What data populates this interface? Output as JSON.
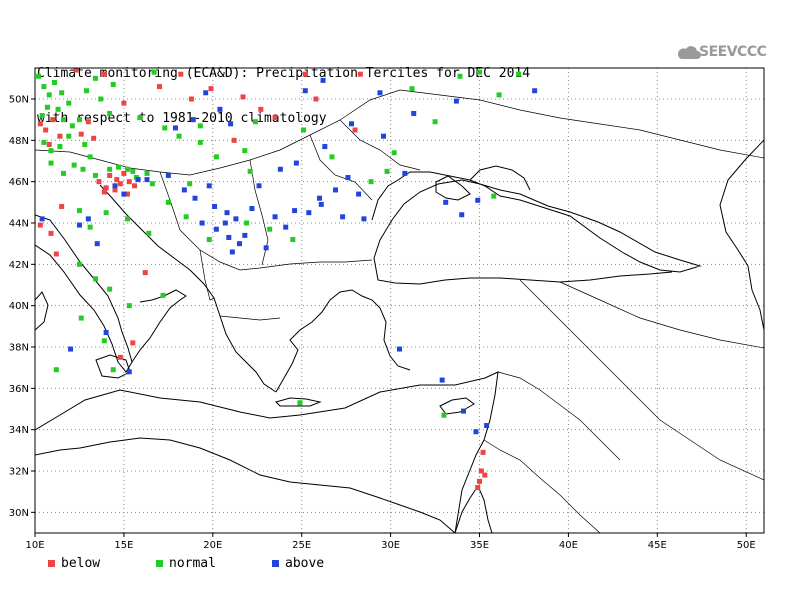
{
  "title": {
    "line1": "Climate monitoring (ECA&D): Precipitation Terciles for DEC 2014",
    "line2": "with respect to 1981-2010 climatology"
  },
  "logo": {
    "text": "SEEVCCC",
    "icon": "cloud-icon"
  },
  "colors": {
    "below": "#ee4444",
    "normal": "#22cc22",
    "above": "#2244dd"
  },
  "chart_data": {
    "type": "scatter",
    "x_axis": {
      "range": [
        10,
        51
      ],
      "ticks": [
        "10E",
        "15E",
        "20E",
        "25E",
        "30E",
        "35E",
        "40E",
        "45E",
        "50E"
      ]
    },
    "y_axis": {
      "range": [
        29,
        51.5
      ],
      "ticks": [
        "30N",
        "32N",
        "34N",
        "36N",
        "38N",
        "40N",
        "42N",
        "44N",
        "46N",
        "48N",
        "50N"
      ]
    },
    "grid": true,
    "legend": [
      {
        "key": "below",
        "label": "below"
      },
      {
        "key": "normal",
        "label": "normal"
      },
      {
        "key": "above",
        "label": "above"
      }
    ],
    "series": [
      {
        "name": "below",
        "points": [
          [
            10.3,
            48.8
          ],
          [
            10.6,
            48.5
          ],
          [
            11.0,
            49.0
          ],
          [
            11.4,
            48.2
          ],
          [
            10.8,
            47.8
          ],
          [
            12.6,
            48.3
          ],
          [
            13.0,
            48.9
          ],
          [
            13.3,
            48.1
          ],
          [
            13.9,
            51.2
          ],
          [
            12.3,
            51.4
          ],
          [
            15.0,
            49.8
          ],
          [
            17.0,
            50.6
          ],
          [
            18.2,
            51.2
          ],
          [
            18.8,
            50.0
          ],
          [
            19.9,
            50.5
          ],
          [
            21.7,
            50.1
          ],
          [
            22.7,
            49.5
          ],
          [
            23.5,
            49.1
          ],
          [
            25.2,
            51.2
          ],
          [
            25.8,
            50.0
          ],
          [
            28.3,
            51.2
          ],
          [
            28.0,
            48.5
          ],
          [
            21.2,
            48.0
          ],
          [
            15.3,
            46.0
          ],
          [
            14.8,
            45.9
          ],
          [
            14.2,
            46.3
          ],
          [
            14.0,
            45.7
          ],
          [
            13.6,
            46.0
          ],
          [
            14.5,
            45.6
          ],
          [
            15.0,
            46.4
          ],
          [
            15.6,
            45.8
          ],
          [
            15.2,
            45.4
          ],
          [
            14.6,
            46.1
          ],
          [
            13.9,
            45.5
          ],
          [
            11.5,
            44.8
          ],
          [
            10.9,
            43.5
          ],
          [
            10.3,
            43.9
          ],
          [
            11.2,
            42.5
          ],
          [
            16.2,
            41.6
          ],
          [
            14.8,
            37.5
          ],
          [
            15.5,
            38.2
          ],
          [
            35.1,
            32.0
          ],
          [
            35.0,
            31.5
          ],
          [
            34.9,
            31.2
          ],
          [
            35.2,
            32.9
          ],
          [
            35.3,
            31.8
          ]
        ]
      },
      {
        "name": "normal",
        "points": [
          [
            10.2,
            51.1
          ],
          [
            10.5,
            50.6
          ],
          [
            10.8,
            50.2
          ],
          [
            11.1,
            50.8
          ],
          [
            11.5,
            50.3
          ],
          [
            11.9,
            49.8
          ],
          [
            11.3,
            49.5
          ],
          [
            10.7,
            49.6
          ],
          [
            10.4,
            49.2
          ],
          [
            11.6,
            49.0
          ],
          [
            12.1,
            48.7
          ],
          [
            12.5,
            49.0
          ],
          [
            11.9,
            48.2
          ],
          [
            11.4,
            47.7
          ],
          [
            12.8,
            47.8
          ],
          [
            10.9,
            47.5
          ],
          [
            10.5,
            47.9
          ],
          [
            13.1,
            47.2
          ],
          [
            12.2,
            46.8
          ],
          [
            11.6,
            46.4
          ],
          [
            10.9,
            46.9
          ],
          [
            12.7,
            46.6
          ],
          [
            13.4,
            46.3
          ],
          [
            14.2,
            46.6
          ],
          [
            14.7,
            46.7
          ],
          [
            15.2,
            46.6
          ],
          [
            15.7,
            46.2
          ],
          [
            16.3,
            46.4
          ],
          [
            15.5,
            46.5
          ],
          [
            16.6,
            45.9
          ],
          [
            13.4,
            51.0
          ],
          [
            14.4,
            50.7
          ],
          [
            16.7,
            51.3
          ],
          [
            12.9,
            50.4
          ],
          [
            13.7,
            50.0
          ],
          [
            14.2,
            49.3
          ],
          [
            15.9,
            49.1
          ],
          [
            17.3,
            48.6
          ],
          [
            18.1,
            48.2
          ],
          [
            19.3,
            47.9
          ],
          [
            20.2,
            47.2
          ],
          [
            21.8,
            47.5
          ],
          [
            22.4,
            48.9
          ],
          [
            19.3,
            48.7
          ],
          [
            22.1,
            46.5
          ],
          [
            18.7,
            45.9
          ],
          [
            17.5,
            45.0
          ],
          [
            18.5,
            44.3
          ],
          [
            19.8,
            43.2
          ],
          [
            16.4,
            43.5
          ],
          [
            15.2,
            44.2
          ],
          [
            14.0,
            44.5
          ],
          [
            21.9,
            44.0
          ],
          [
            23.2,
            43.7
          ],
          [
            24.5,
            43.2
          ],
          [
            26.7,
            47.2
          ],
          [
            28.9,
            46.0
          ],
          [
            29.8,
            46.5
          ],
          [
            30.2,
            47.4
          ],
          [
            32.5,
            48.9
          ],
          [
            31.2,
            50.5
          ],
          [
            33.9,
            51.1
          ],
          [
            35.0,
            51.3
          ],
          [
            37.2,
            51.2
          ],
          [
            36.1,
            50.2
          ],
          [
            25.1,
            48.5
          ],
          [
            12.5,
            42.0
          ],
          [
            13.4,
            41.3
          ],
          [
            14.2,
            40.8
          ],
          [
            15.3,
            40.0
          ],
          [
            17.2,
            40.5
          ],
          [
            11.2,
            36.9
          ],
          [
            14.4,
            36.9
          ],
          [
            13.9,
            38.3
          ],
          [
            12.6,
            39.4
          ],
          [
            24.9,
            35.3
          ],
          [
            33.0,
            34.7
          ],
          [
            35.8,
            45.3
          ],
          [
            12.5,
            44.6
          ],
          [
            13.1,
            43.8
          ]
        ]
      },
      {
        "name": "above",
        "points": [
          [
            14.5,
            45.8
          ],
          [
            15.0,
            45.4
          ],
          [
            15.8,
            46.1
          ],
          [
            16.3,
            46.1
          ],
          [
            17.5,
            46.3
          ],
          [
            18.4,
            45.6
          ],
          [
            19.0,
            45.2
          ],
          [
            20.1,
            44.8
          ],
          [
            20.8,
            44.5
          ],
          [
            19.4,
            44.0
          ],
          [
            20.2,
            43.7
          ],
          [
            20.9,
            43.3
          ],
          [
            21.3,
            44.2
          ],
          [
            21.8,
            43.4
          ],
          [
            22.2,
            44.7
          ],
          [
            23.5,
            44.3
          ],
          [
            24.1,
            43.8
          ],
          [
            25.4,
            44.5
          ],
          [
            26.1,
            44.9
          ],
          [
            27.3,
            44.3
          ],
          [
            28.5,
            44.2
          ],
          [
            26.9,
            45.6
          ],
          [
            27.6,
            46.2
          ],
          [
            28.2,
            45.4
          ],
          [
            22.6,
            45.8
          ],
          [
            23.8,
            46.6
          ],
          [
            24.7,
            46.9
          ],
          [
            26.3,
            47.7
          ],
          [
            27.8,
            48.8
          ],
          [
            29.6,
            48.2
          ],
          [
            30.8,
            46.4
          ],
          [
            33.1,
            45.0
          ],
          [
            34.0,
            44.4
          ],
          [
            34.9,
            45.1
          ],
          [
            25.2,
            50.4
          ],
          [
            26.2,
            50.9
          ],
          [
            29.4,
            50.3
          ],
          [
            31.3,
            49.3
          ],
          [
            33.7,
            49.9
          ],
          [
            38.1,
            50.4
          ],
          [
            21.0,
            48.8
          ],
          [
            20.4,
            49.5
          ],
          [
            19.6,
            50.3
          ],
          [
            18.9,
            49.0
          ],
          [
            17.9,
            48.6
          ],
          [
            20.7,
            44.0
          ],
          [
            19.8,
            45.8
          ],
          [
            21.5,
            43.0
          ],
          [
            23.0,
            42.8
          ],
          [
            21.1,
            42.6
          ],
          [
            24.6,
            44.6
          ],
          [
            10.4,
            44.2
          ],
          [
            13.0,
            44.2
          ],
          [
            12.5,
            43.9
          ],
          [
            13.5,
            43.0
          ],
          [
            12.0,
            37.9
          ],
          [
            15.3,
            36.8
          ],
          [
            14.0,
            38.7
          ],
          [
            32.9,
            36.4
          ],
          [
            30.5,
            37.9
          ],
          [
            34.1,
            34.9
          ],
          [
            34.8,
            33.9
          ],
          [
            35.4,
            34.2
          ],
          [
            26.0,
            45.2
          ]
        ]
      }
    ]
  }
}
